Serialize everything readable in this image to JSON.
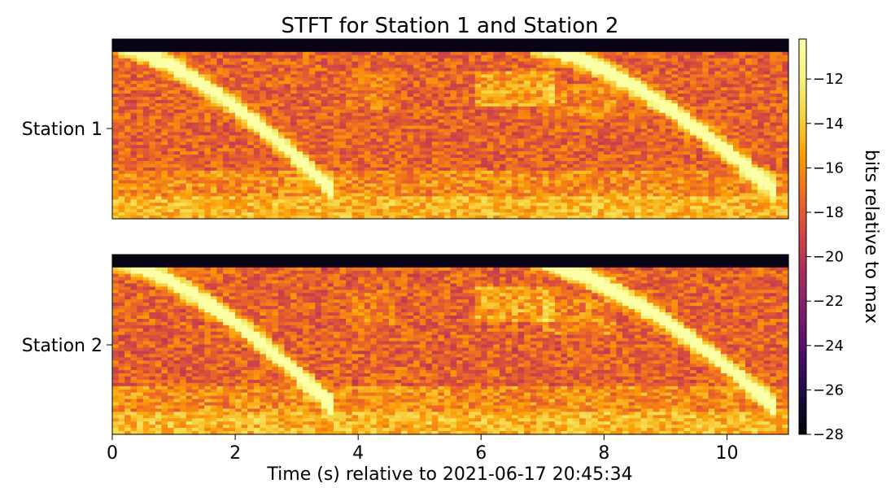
{
  "chart_data": {
    "type": "heatmap",
    "title": "STFT for Station 1 and Station 2",
    "xlabel": "Time (s) relative to 2021-06-17 20:45:34",
    "xlim": [
      0,
      11
    ],
    "x_ticks": [
      {
        "value": 0,
        "label": "0"
      },
      {
        "value": 2,
        "label": "2"
      },
      {
        "value": 4,
        "label": "4"
      },
      {
        "value": 6,
        "label": "6"
      },
      {
        "value": 8,
        "label": "8"
      },
      {
        "value": 10,
        "label": "10"
      }
    ],
    "panels": [
      {
        "name": "Station 1",
        "ytick_label": "Station 1"
      },
      {
        "name": "Station 2",
        "ytick_label": "Station 2"
      }
    ],
    "colormap": "inferno",
    "colorbar": {
      "label": "bits relative to max",
      "range": [
        -28,
        -10.2
      ],
      "ticks": [
        {
          "value": -12,
          "label": "−12"
        },
        {
          "value": -14,
          "label": "−14"
        },
        {
          "value": -16,
          "label": "−16"
        },
        {
          "value": -18,
          "label": "−18"
        },
        {
          "value": -20,
          "label": "−20"
        },
        {
          "value": -22,
          "label": "−22"
        },
        {
          "value": -24,
          "label": "−24"
        },
        {
          "value": -26,
          "label": "−26"
        },
        {
          "value": -28,
          "label": "−28"
        }
      ]
    },
    "chirps": [
      {
        "t_start": 0.0,
        "t_end": 3.6
      },
      {
        "t_start": 6.8,
        "t_end": 10.8
      }
    ]
  }
}
